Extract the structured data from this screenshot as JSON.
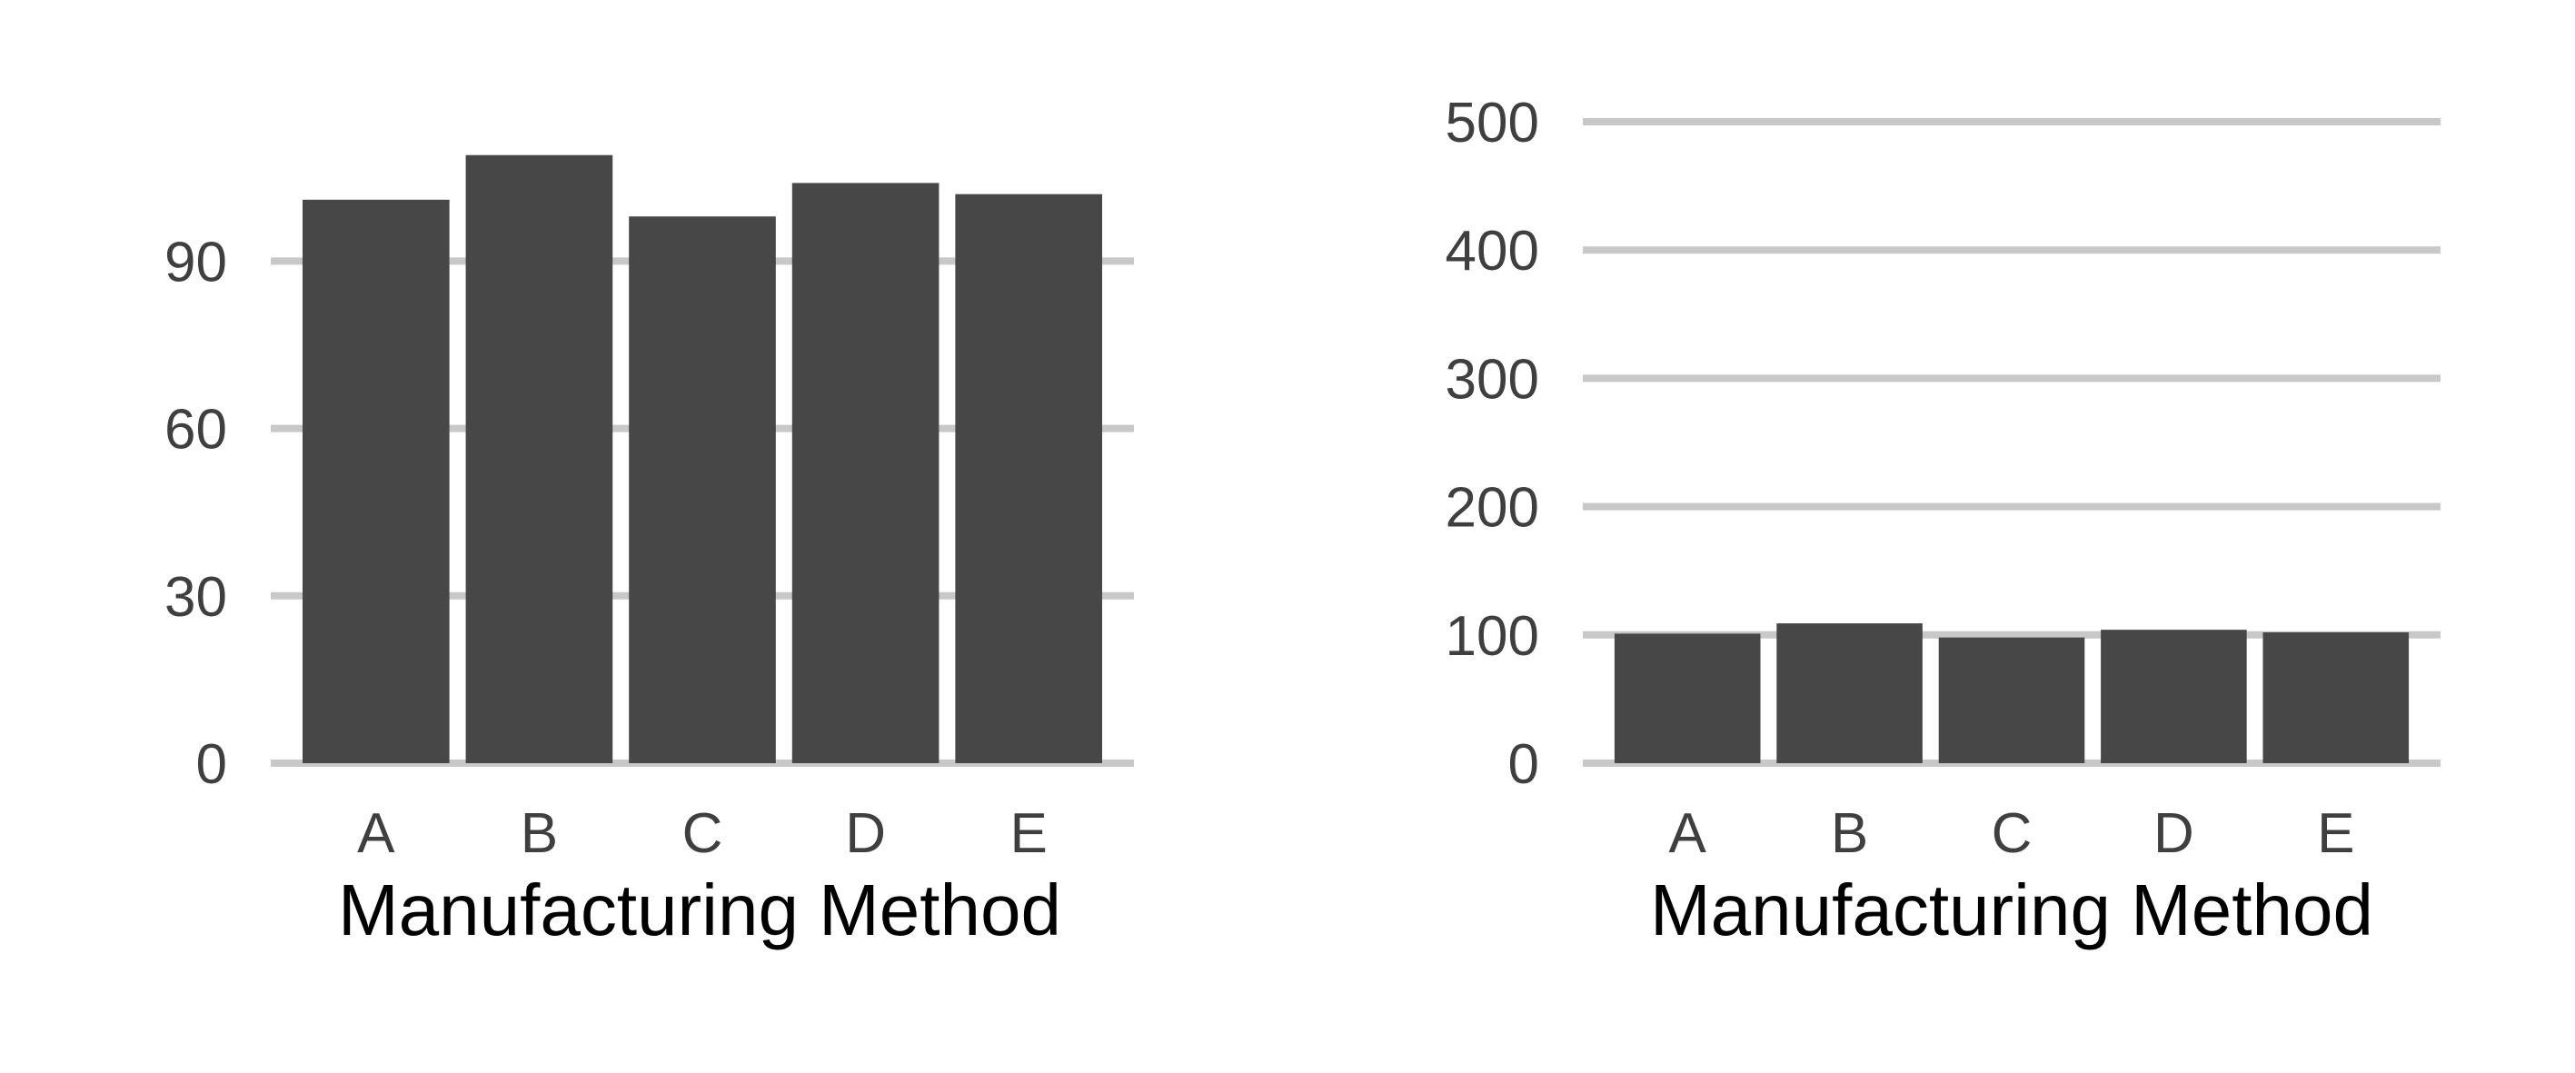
{
  "colors": {
    "bar": "#474747",
    "grid": "#c8c8c8",
    "tick_text": "#3f3f3f",
    "axis_title": "#000000",
    "background": "#ffffff"
  },
  "chart_data": [
    {
      "type": "bar",
      "categories": [
        "A",
        "B",
        "C",
        "D",
        "E"
      ],
      "values": [
        101,
        109,
        98,
        104,
        102
      ],
      "xlabel": "Manufacturing Method",
      "ylabel": "",
      "ylim": [
        0,
        114
      ],
      "yticks": [
        0,
        30,
        60,
        90
      ],
      "grid": "horizontal"
    },
    {
      "type": "bar",
      "categories": [
        "A",
        "B",
        "C",
        "D",
        "E"
      ],
      "values": [
        101,
        109,
        98,
        104,
        102
      ],
      "xlabel": "Manufacturing Method",
      "ylabel": "",
      "ylim": [
        0,
        500
      ],
      "yticks": [
        0,
        100,
        200,
        300,
        400,
        500
      ],
      "grid": "horizontal"
    }
  ]
}
